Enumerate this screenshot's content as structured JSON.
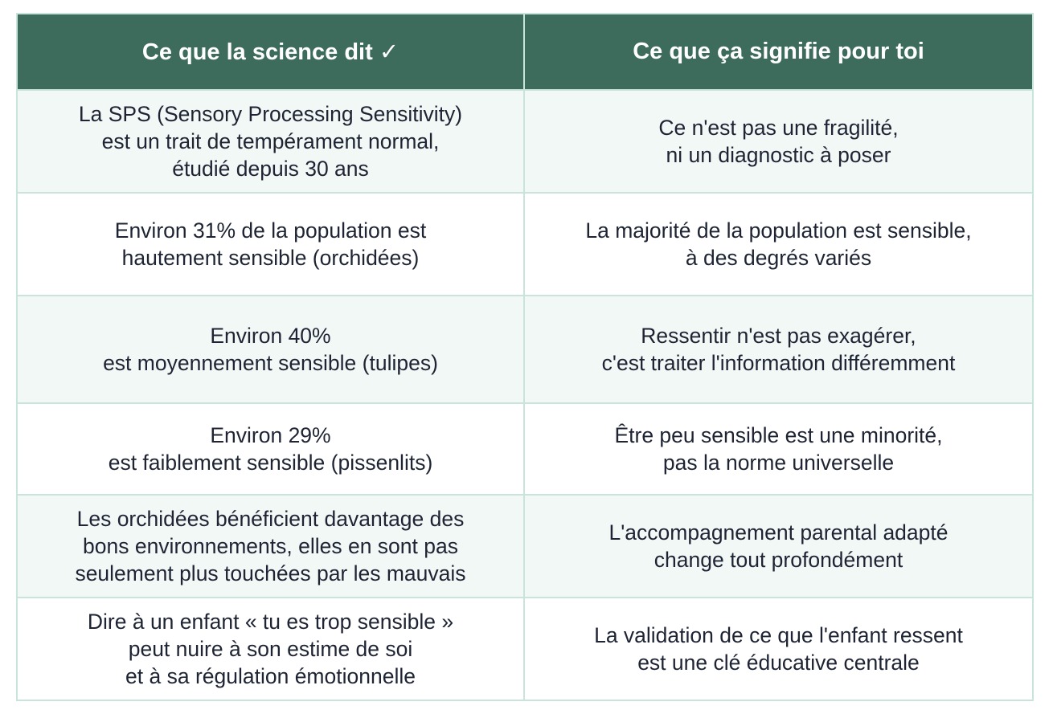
{
  "table": {
    "headers": [
      "Ce que la science dit ✓",
      "Ce que ça signifie pour toi"
    ],
    "rows": [
      {
        "science": [
          "La SPS (Sensory Processing Sensitivity)",
          "est un trait de tempérament normal,",
          "étudié depuis 30 ans"
        ],
        "meaning": [
          "Ce n'est pas une fragilité,",
          "ni un diagnostic à poser"
        ]
      },
      {
        "science": [
          "Environ 31% de la population est",
          "hautement sensible (orchidées)"
        ],
        "meaning": [
          "La majorité de la population est sensible,",
          "à des degrés variés"
        ]
      },
      {
        "science": [
          "Environ 40%",
          "est moyennement sensible (tulipes)"
        ],
        "meaning": [
          "Ressentir n'est pas exagérer,",
          "c'est traiter l'information différemment"
        ]
      },
      {
        "science": [
          "Environ 29%",
          "est faiblement sensible (pissenlits)"
        ],
        "meaning": [
          "Être peu sensible est une minorité,",
          "pas la norme universelle"
        ]
      },
      {
        "science": [
          "Les orchidées bénéficient davantage des",
          "bons environnements, elles en sont pas",
          "seulement plus touchées par les mauvais"
        ],
        "meaning": [
          "L'accompagnement parental adapté",
          "change tout profondément"
        ]
      },
      {
        "science": [
          "Dire à un enfant « tu es trop sensible »",
          "peut nuire à son estime de soi",
          "et à sa régulation émotionnelle"
        ],
        "meaning": [
          "La validation de ce que l'enfant ressent",
          "est une clé éducative centrale"
        ]
      }
    ]
  },
  "colors": {
    "header_bg": "#3d6b5c",
    "header_text": "#ffffff",
    "border": "#c9e4dc",
    "row_alt_bg": "#f2f8f6",
    "body_text": "#1e2433"
  }
}
